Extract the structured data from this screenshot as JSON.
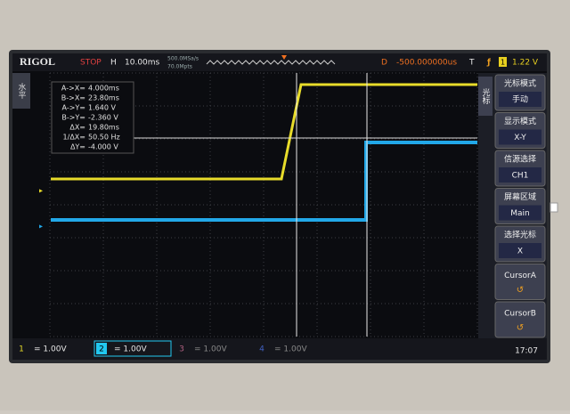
{
  "top_bar": {
    "brand": "RIGOL",
    "state": "STOP",
    "timebase_label": "H",
    "timebase": "10.00ms",
    "sample_rate": "500.0MSa/s",
    "memory_depth": "70.0Mpts",
    "delay_label": "D",
    "delay": "-500.000000us",
    "trigger_label": "T",
    "trigger_source": "1",
    "trigger_level": "1.22 V"
  },
  "left_tab": "水平",
  "cursor_readout": [
    {
      "label": "A->X=",
      "value": "4.000ms"
    },
    {
      "label": "B->X=",
      "value": "23.80ms"
    },
    {
      "label": "A->Y=",
      "value": "1.640 V"
    },
    {
      "label": "B->Y=",
      "value": "-2.360 V"
    },
    {
      "label": "ΔX=",
      "value": "19.80ms"
    },
    {
      "label": "1/ΔX=",
      "value": "50.50 Hz"
    },
    {
      "label": "ΔY=",
      "value": "-4.000 V"
    }
  ],
  "menu": {
    "side_label": "光标",
    "items": [
      {
        "title": "光标模式",
        "value": "手动"
      },
      {
        "title": "显示模式",
        "value": "X-Y"
      },
      {
        "title": "信源选择",
        "value": "CH1"
      },
      {
        "title": "屏幕区域",
        "value": "Main"
      },
      {
        "title": "选择光标",
        "value": "X"
      },
      {
        "title": "CursorA"
      },
      {
        "title": "CursorB"
      }
    ]
  },
  "channels": [
    {
      "number": "1",
      "scale": "= 1.00V"
    },
    {
      "number": "2",
      "scale": "= 1.00V"
    },
    {
      "number": "3",
      "scale": "= 1.00V"
    },
    {
      "number": "4",
      "scale": "= 1.00V"
    }
  ],
  "clock": "17:07"
}
